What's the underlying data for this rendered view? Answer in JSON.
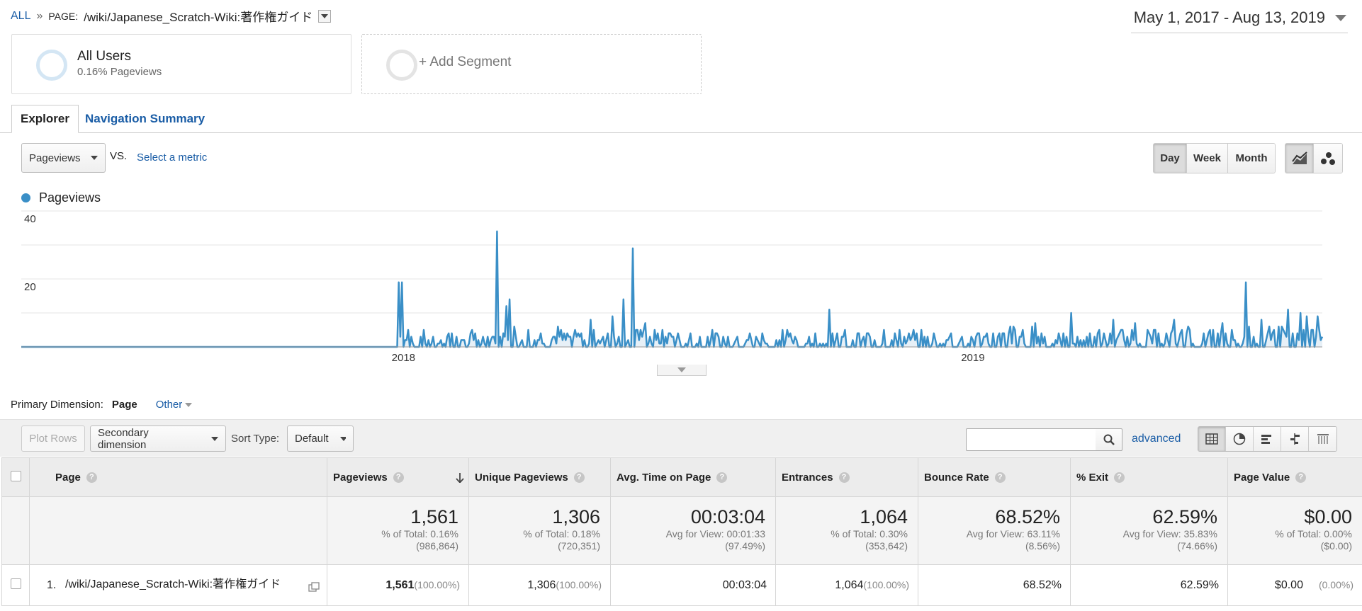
{
  "breadcrumb": {
    "all_label": "ALL",
    "separator": "»",
    "page_label": "PAGE:",
    "page_path": "/wiki/Japanese_Scratch-Wiki:著作権ガイド"
  },
  "date_range": "May 1, 2017 - Aug 13, 2019",
  "segments": {
    "all_users": {
      "name": "All Users",
      "sub": "0.16% Pageviews"
    },
    "add_segment": {
      "label": "+ Add Segment"
    }
  },
  "tabs": [
    {
      "label": "Explorer",
      "active": true
    },
    {
      "label": "Navigation Summary",
      "active": false
    }
  ],
  "metric": {
    "selected": "Pageviews",
    "vs_label": "VS.",
    "select_metric_label": "Select a metric"
  },
  "period_buttons": {
    "day": "Day",
    "week": "Week",
    "month": "Month",
    "active": "Day"
  },
  "chart_data": {
    "type": "line",
    "title": "",
    "legend": [
      {
        "name": "Pageviews",
        "color": "#3a8fc7"
      }
    ],
    "y_ticks": [
      "20",
      "40"
    ],
    "ylim": [
      0,
      40
    ],
    "x_ticks": [
      "2018",
      "2019"
    ],
    "x_range": [
      "2017-05-01",
      "2019-08-13"
    ],
    "grid": true,
    "series": [
      {
        "name": "Pageviews",
        "granularity": "day",
        "points": [
          [
            "2017-05-01",
            0
          ],
          [
            "2017-12-28",
            0
          ],
          [
            "2017-12-29",
            19
          ],
          [
            "2017-12-31",
            19
          ],
          [
            "2018-01-02",
            2
          ],
          [
            "2018-01-04",
            5
          ],
          [
            "2018-01-08",
            0
          ],
          [
            "2018-01-20",
            3
          ],
          [
            "2018-01-24",
            1
          ],
          [
            "2018-02-01",
            4
          ],
          [
            "2018-02-05",
            0
          ],
          [
            "2018-02-15",
            2
          ],
          [
            "2018-02-19",
            0
          ],
          [
            "2018-02-28",
            3
          ],
          [
            "2018-03-02",
            34
          ],
          [
            "2018-03-04",
            3
          ],
          [
            "2018-03-08",
            12
          ],
          [
            "2018-03-10",
            14
          ],
          [
            "2018-03-13",
            6
          ],
          [
            "2018-03-18",
            2
          ],
          [
            "2018-03-22",
            5
          ],
          [
            "2018-04-01",
            1
          ],
          [
            "2018-04-10",
            6
          ],
          [
            "2018-04-20",
            3
          ],
          [
            "2018-05-01",
            8
          ],
          [
            "2018-05-06",
            2
          ],
          [
            "2018-05-15",
            9
          ],
          [
            "2018-05-22",
            14
          ],
          [
            "2018-05-25",
            2
          ],
          [
            "2018-05-28",
            29
          ],
          [
            "2018-05-30",
            5
          ],
          [
            "2018-06-05",
            7
          ],
          [
            "2018-06-12",
            2
          ],
          [
            "2018-06-20",
            4
          ],
          [
            "2018-07-01",
            1
          ],
          [
            "2018-07-15",
            3
          ],
          [
            "2018-08-01",
            1
          ],
          [
            "2018-08-20",
            2
          ],
          [
            "2018-09-05",
            3
          ],
          [
            "2018-09-20",
            1
          ],
          [
            "2018-10-01",
            11
          ],
          [
            "2018-10-05",
            2
          ],
          [
            "2018-10-20",
            4
          ],
          [
            "2018-11-05",
            5
          ],
          [
            "2018-11-20",
            2
          ],
          [
            "2018-12-01",
            3
          ],
          [
            "2018-12-15",
            2
          ],
          [
            "2018-12-29",
            1
          ],
          [
            "2019-01-10",
            4
          ],
          [
            "2019-01-25",
            6
          ],
          [
            "2019-02-10",
            7
          ],
          [
            "2019-02-25",
            4
          ],
          [
            "2019-03-05",
            10
          ],
          [
            "2019-03-20",
            3
          ],
          [
            "2019-04-01",
            8
          ],
          [
            "2019-04-15",
            7
          ],
          [
            "2019-04-30",
            4
          ],
          [
            "2019-05-10",
            8
          ],
          [
            "2019-05-20",
            5
          ],
          [
            "2019-06-01",
            4
          ],
          [
            "2019-06-10",
            7
          ],
          [
            "2019-06-20",
            1
          ],
          [
            "2019-06-25",
            19
          ],
          [
            "2019-06-27",
            6
          ],
          [
            "2019-06-30",
            3
          ],
          [
            "2019-07-05",
            8
          ],
          [
            "2019-07-10",
            6
          ],
          [
            "2019-07-18",
            6
          ],
          [
            "2019-07-22",
            11
          ],
          [
            "2019-07-25",
            4
          ],
          [
            "2019-07-30",
            10
          ],
          [
            "2019-08-03",
            9
          ],
          [
            "2019-08-07",
            5
          ],
          [
            "2019-08-10",
            9
          ],
          [
            "2019-08-13",
            3
          ]
        ]
      }
    ]
  },
  "primary_dimension": {
    "label": "Primary Dimension:",
    "current": "Page",
    "other": "Other"
  },
  "toolbar": {
    "plot_rows": "Plot Rows",
    "secondary_dimension": "Secondary dimension",
    "sort_type_label": "Sort Type:",
    "sort_type_value": "Default",
    "search_value": "",
    "advanced": "advanced"
  },
  "table": {
    "columns": {
      "page": "Page",
      "pageviews": "Pageviews",
      "unique_pageviews": "Unique Pageviews",
      "avg_time": "Avg. Time on Page",
      "entrances": "Entrances",
      "bounce_rate": "Bounce Rate",
      "exit": "% Exit",
      "page_value": "Page Value"
    },
    "totals": {
      "pageviews": {
        "value": "1,561",
        "line1": "% of Total: 0.16%",
        "line2": "(986,864)"
      },
      "unique_pageviews": {
        "value": "1,306",
        "line1": "% of Total: 0.18%",
        "line2": "(720,351)"
      },
      "avg_time": {
        "value": "00:03:04",
        "line1": "Avg for View: 00:01:33",
        "line2": "(97.49%)"
      },
      "entrances": {
        "value": "1,064",
        "line1": "% of Total: 0.30%",
        "line2": "(353,642)"
      },
      "bounce_rate": {
        "value": "68.52%",
        "line1": "Avg for View: 63.11%",
        "line2": "(8.56%)"
      },
      "exit": {
        "value": "62.59%",
        "line1": "Avg for View: 35.83%",
        "line2": "(74.66%)"
      },
      "page_value": {
        "value": "$0.00",
        "line1": "% of Total: 0.00%",
        "line2": "($0.00)"
      }
    },
    "rows": [
      {
        "index": "1.",
        "page": "/wiki/Japanese_Scratch-Wiki:著作権ガイド",
        "pageviews": "1,561",
        "pageviews_pct": "(100.00%)",
        "unique_pageviews": "1,306",
        "unique_pageviews_pct": "(100.00%)",
        "avg_time": "00:03:04",
        "entrances": "1,064",
        "entrances_pct": "(100.00%)",
        "bounce_rate": "68.52%",
        "exit": "62.59%",
        "page_value": "$0.00",
        "page_value_pct": "(0.00%)"
      }
    ]
  }
}
